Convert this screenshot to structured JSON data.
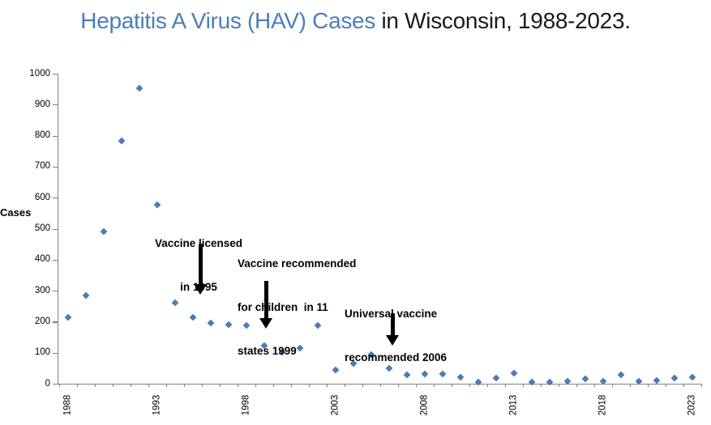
{
  "title": {
    "highlight": "Hepatitis A Virus (HAV) Cases",
    "rest": " in Wisconsin, 1988-2023."
  },
  "y_axis": {
    "label": "Cases",
    "min": 0,
    "max": 1000,
    "step": 100
  },
  "x_axis": {
    "labeled_years": [
      1988,
      1993,
      1998,
      2003,
      2008,
      2013,
      2018,
      2023
    ]
  },
  "annotations": [
    {
      "id": "vaccine-licensed-1995",
      "lines": [
        "Vaccine licensed",
        "in 1995"
      ]
    },
    {
      "id": "vaccine-recommended-1999",
      "lines": [
        "Vaccine recommended",
        "for children  in 11",
        "states 1999"
      ]
    },
    {
      "id": "universal-vaccine-2006",
      "lines": [
        "Universal vaccine",
        "recommended 2006"
      ]
    }
  ],
  "colors": {
    "title_highlight": "#4A7EBB",
    "title_rest": "#1A1A1A",
    "marker": "#4A7EBC",
    "axis": "#808080",
    "annotation": "#000000"
  },
  "chart_data": {
    "type": "scatter",
    "title": "Hepatitis A Virus (HAV) Cases in Wisconsin, 1988-2023.",
    "xlabel": "",
    "ylabel": "Cases",
    "ylim": [
      0,
      1000
    ],
    "y_tick_step": 100,
    "xlim": [
      1988,
      2023
    ],
    "x_ticks_labeled": [
      1988,
      1993,
      1998,
      2003,
      2008,
      2013,
      2018,
      2023
    ],
    "grid": false,
    "legend": false,
    "marker": "diamond",
    "x": [
      1988,
      1989,
      1990,
      1991,
      1992,
      1993,
      1994,
      1995,
      1996,
      1997,
      1998,
      1999,
      2000,
      2001,
      2002,
      2003,
      2004,
      2005,
      2006,
      2007,
      2008,
      2009,
      2010,
      2011,
      2012,
      2013,
      2014,
      2015,
      2016,
      2017,
      2018,
      2019,
      2020,
      2021,
      2022,
      2023
    ],
    "y": [
      213,
      285,
      490,
      782,
      952,
      578,
      260,
      213,
      195,
      190,
      189,
      122,
      101,
      114,
      189,
      44,
      64,
      93,
      49,
      28,
      31,
      31,
      20,
      6,
      17,
      34,
      5,
      6,
      8,
      16,
      8,
      29,
      8,
      11,
      19,
      20
    ],
    "annotations": [
      {
        "text": "Vaccine licensed in 1995",
        "arrow_points_to_year": 1995
      },
      {
        "text": "Vaccine recommended for children in 11 states 1999",
        "arrow_points_to_year": 1999
      },
      {
        "text": "Universal vaccine recommended 2006",
        "arrow_points_to_year": 2006
      }
    ]
  }
}
